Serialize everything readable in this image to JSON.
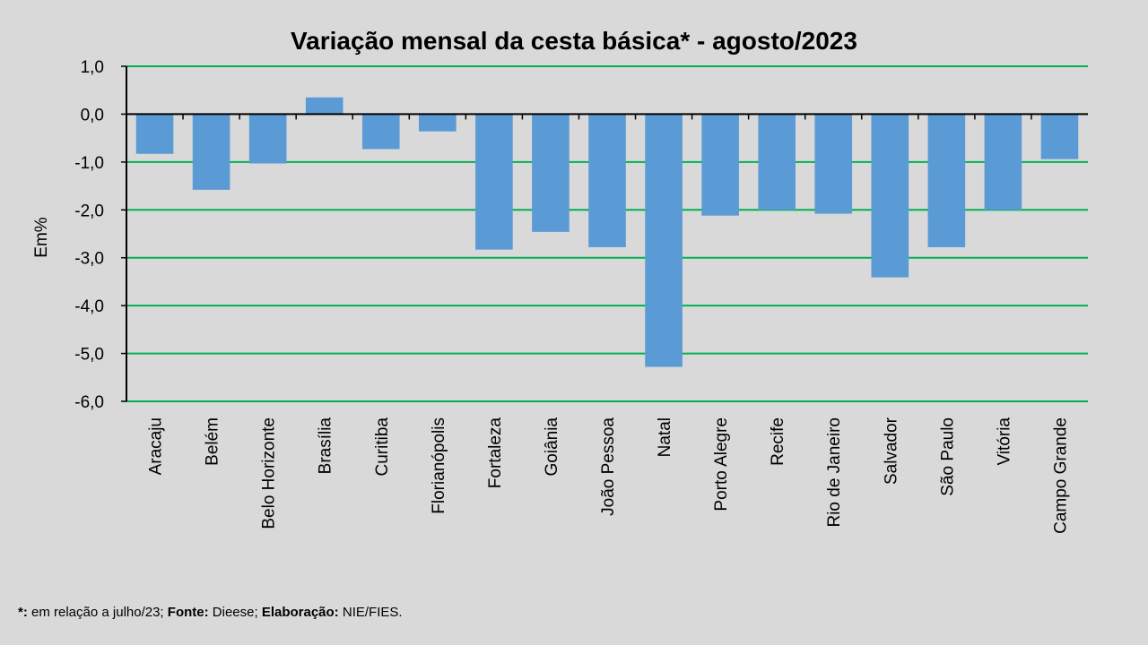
{
  "chart_data": {
    "type": "bar",
    "title": "Variação  mensal da cesta básica* - agosto/2023",
    "xlabel": "",
    "ylabel": "Em%",
    "ylim": [
      -6,
      1
    ],
    "yticks": [
      1,
      0,
      -1,
      -2,
      -3,
      -4,
      -5,
      -6
    ],
    "ytick_labels": [
      "1,0",
      "0,0",
      "-1,0",
      "-2,0",
      "-3,0",
      "-4,0",
      "-5,0",
      "-6,0"
    ],
    "grid": true,
    "categories": [
      "Aracaju",
      "Belém",
      "Belo Horizonte",
      "Brasília",
      "Curitiba",
      "Florianópolis",
      "Fortaleza",
      "Goiânia",
      "João Pessoa",
      "Natal",
      "Porto Alegre",
      "Recife",
      "Rio de Janeiro",
      "Salvador",
      "São Paulo",
      "Vitória",
      "Campo Grande"
    ],
    "values": [
      -0.83,
      -1.58,
      -1.03,
      0.35,
      -0.73,
      -0.36,
      -2.83,
      -2.46,
      -2.78,
      -5.28,
      -2.12,
      -2.0,
      -2.08,
      -3.41,
      -2.78,
      -2.0,
      -0.94
    ],
    "colors": {
      "bar": "#5b9bd5",
      "grid": "#00b050",
      "background": "#d9d9d9"
    }
  },
  "footer": {
    "star": "*:",
    "note": " em relação a julho/23; ",
    "fonte_label": "Fonte:",
    "fonte": " Dieese; ",
    "elab_label": "Elaboração:",
    "elab": " NIE/FIES."
  }
}
